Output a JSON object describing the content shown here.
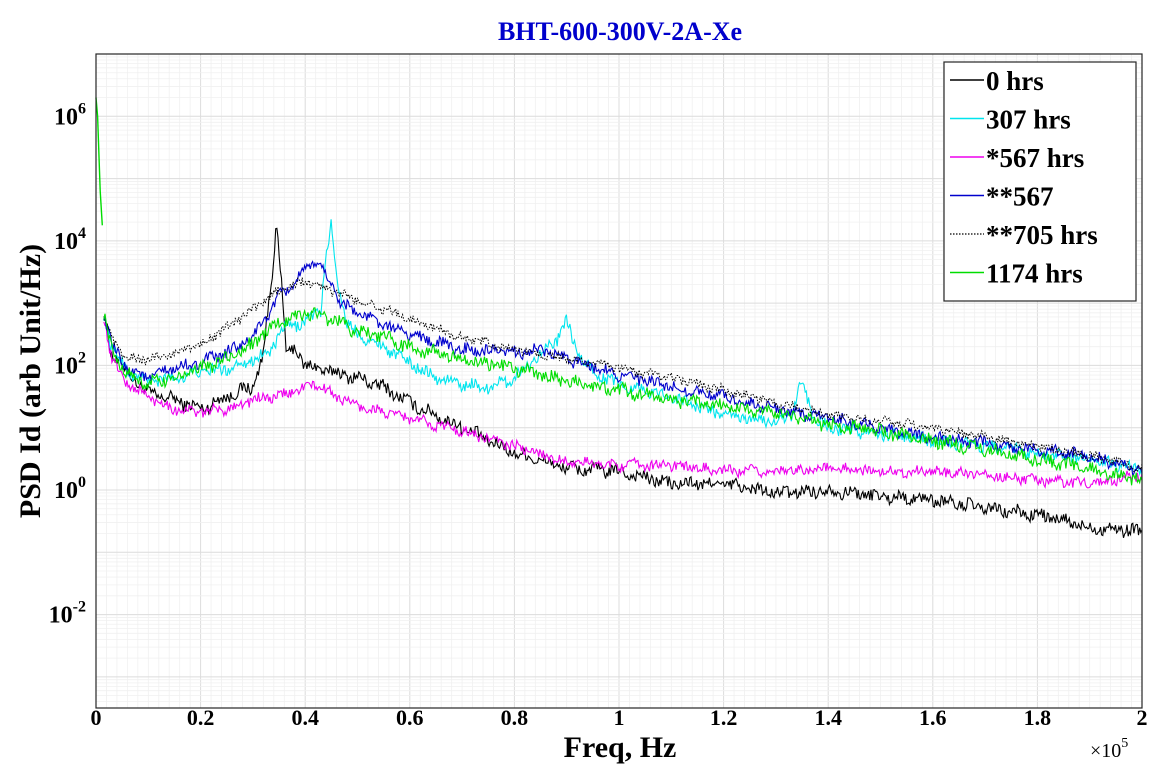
{
  "chart_data": {
    "type": "line",
    "title": "BHT-600-300V-2A-Xe",
    "xlabel": "Freq, Hz",
    "ylabel": "PSD Id (arb Unit/Hz)",
    "x_multiplier_label": "×10",
    "x_multiplier_exp": "5",
    "x_scale": 100000,
    "xlim": [
      0,
      2
    ],
    "ylim_log10": [
      -3.5,
      7
    ],
    "y_scale": "log",
    "grid": true,
    "legend_position": "top-right",
    "x_ticks": [
      "0",
      "0.2",
      "0.4",
      "0.6",
      "0.8",
      "1",
      "1.2",
      "1.4",
      "1.6",
      "1.8",
      "2"
    ],
    "y_ticks": [
      {
        "base": "10",
        "exp": "6",
        "log10": 6
      },
      {
        "base": "10",
        "exp": "4",
        "log10": 4
      },
      {
        "base": "10",
        "exp": "2",
        "log10": 2
      },
      {
        "base": "10",
        "exp": "0",
        "log10": 0
      },
      {
        "base": "10",
        "exp": "-2",
        "log10": -2
      }
    ],
    "series": [
      {
        "name": "0 hrs",
        "color": "#000000",
        "dash": false,
        "noise": 0.1,
        "points": [
          [
            0.015,
            2.85
          ],
          [
            0.03,
            2.2
          ],
          [
            0.06,
            1.9
          ],
          [
            0.1,
            1.55
          ],
          [
            0.15,
            1.45
          ],
          [
            0.2,
            1.3
          ],
          [
            0.25,
            1.5
          ],
          [
            0.28,
            1.6
          ],
          [
            0.3,
            1.65
          ],
          [
            0.32,
            2.2
          ],
          [
            0.335,
            3.3
          ],
          [
            0.345,
            4.3
          ],
          [
            0.355,
            3.3
          ],
          [
            0.365,
            2.1
          ],
          [
            0.38,
            2.3
          ],
          [
            0.4,
            2.0
          ],
          [
            0.45,
            1.9
          ],
          [
            0.5,
            1.8
          ],
          [
            0.55,
            1.65
          ],
          [
            0.6,
            1.4
          ],
          [
            0.7,
            1.0
          ],
          [
            0.8,
            0.6
          ],
          [
            0.9,
            0.35
          ],
          [
            1.0,
            0.3
          ],
          [
            1.1,
            0.1
          ],
          [
            1.2,
            0.1
          ],
          [
            1.3,
            -0.05
          ],
          [
            1.4,
            0
          ],
          [
            1.5,
            -0.1
          ],
          [
            1.6,
            -0.15
          ],
          [
            1.7,
            -0.3
          ],
          [
            1.8,
            -0.4
          ],
          [
            1.9,
            -0.6
          ],
          [
            2.0,
            -0.65
          ]
        ]
      },
      {
        "name": "307 hrs",
        "color": "#00e5ee",
        "dash": false,
        "noise": 0.09,
        "points": [
          [
            0.015,
            2.8
          ],
          [
            0.03,
            2.3
          ],
          [
            0.06,
            1.9
          ],
          [
            0.1,
            1.75
          ],
          [
            0.15,
            1.8
          ],
          [
            0.2,
            1.9
          ],
          [
            0.25,
            1.95
          ],
          [
            0.3,
            2.1
          ],
          [
            0.33,
            2.2
          ],
          [
            0.36,
            2.6
          ],
          [
            0.4,
            2.7
          ],
          [
            0.43,
            2.9
          ],
          [
            0.44,
            3.8
          ],
          [
            0.45,
            4.25
          ],
          [
            0.46,
            3.4
          ],
          [
            0.48,
            2.7
          ],
          [
            0.5,
            2.5
          ],
          [
            0.55,
            2.3
          ],
          [
            0.6,
            2.05
          ],
          [
            0.65,
            1.8
          ],
          [
            0.7,
            1.7
          ],
          [
            0.75,
            1.65
          ],
          [
            0.8,
            1.8
          ],
          [
            0.85,
            2.2
          ],
          [
            0.88,
            2.4
          ],
          [
            0.9,
            2.7
          ],
          [
            0.92,
            2.2
          ],
          [
            0.95,
            1.9
          ],
          [
            1.0,
            1.7
          ],
          [
            1.1,
            1.5
          ],
          [
            1.2,
            1.2
          ],
          [
            1.3,
            1.1
          ],
          [
            1.33,
            1.2
          ],
          [
            1.35,
            1.75
          ],
          [
            1.37,
            1.2
          ],
          [
            1.4,
            1.0
          ],
          [
            1.5,
            0.9
          ],
          [
            1.6,
            0.8
          ],
          [
            1.7,
            0.7
          ],
          [
            1.8,
            0.6
          ],
          [
            1.9,
            0.5
          ],
          [
            2.0,
            0.3
          ]
        ]
      },
      {
        "name": "*567 hrs",
        "color": "#ee00ee",
        "dash": false,
        "noise": 0.08,
        "points": [
          [
            0.015,
            2.8
          ],
          [
            0.03,
            2.1
          ],
          [
            0.06,
            1.7
          ],
          [
            0.1,
            1.5
          ],
          [
            0.15,
            1.3
          ],
          [
            0.2,
            1.25
          ],
          [
            0.25,
            1.3
          ],
          [
            0.3,
            1.45
          ],
          [
            0.35,
            1.5
          ],
          [
            0.4,
            1.65
          ],
          [
            0.42,
            1.7
          ],
          [
            0.45,
            1.55
          ],
          [
            0.5,
            1.35
          ],
          [
            0.55,
            1.25
          ],
          [
            0.6,
            1.15
          ],
          [
            0.7,
            0.95
          ],
          [
            0.8,
            0.7
          ],
          [
            0.9,
            0.45
          ],
          [
            1.0,
            0.4
          ],
          [
            1.1,
            0.4
          ],
          [
            1.2,
            0.3
          ],
          [
            1.3,
            0.3
          ],
          [
            1.4,
            0.35
          ],
          [
            1.5,
            0.3
          ],
          [
            1.6,
            0.3
          ],
          [
            1.7,
            0.25
          ],
          [
            1.8,
            0.15
          ],
          [
            1.9,
            0.1
          ],
          [
            2.0,
            0.25
          ]
        ]
      },
      {
        "name": "**567",
        "color": "#0000cd",
        "dash": false,
        "noise": 0.09,
        "points": [
          [
            0.015,
            2.85
          ],
          [
            0.03,
            2.3
          ],
          [
            0.06,
            1.95
          ],
          [
            0.1,
            1.8
          ],
          [
            0.15,
            1.95
          ],
          [
            0.2,
            2.05
          ],
          [
            0.25,
            2.2
          ],
          [
            0.3,
            2.45
          ],
          [
            0.35,
            3.1
          ],
          [
            0.4,
            3.5
          ],
          [
            0.42,
            3.7
          ],
          [
            0.44,
            3.45
          ],
          [
            0.47,
            3.0
          ],
          [
            0.5,
            2.85
          ],
          [
            0.55,
            2.65
          ],
          [
            0.6,
            2.5
          ],
          [
            0.7,
            2.25
          ],
          [
            0.8,
            2.2
          ],
          [
            0.85,
            2.25
          ],
          [
            0.9,
            2.1
          ],
          [
            0.95,
            2.0
          ],
          [
            1.0,
            1.85
          ],
          [
            1.1,
            1.65
          ],
          [
            1.2,
            1.5
          ],
          [
            1.3,
            1.3
          ],
          [
            1.4,
            1.15
          ],
          [
            1.5,
            1.0
          ],
          [
            1.6,
            0.85
          ],
          [
            1.7,
            0.75
          ],
          [
            1.8,
            0.65
          ],
          [
            1.9,
            0.55
          ],
          [
            2.0,
            0.3
          ]
        ]
      },
      {
        "name": "**705 hrs",
        "color": "#000000",
        "dash": true,
        "noise": 0.07,
        "points": [
          [
            0.015,
            2.8
          ],
          [
            0.03,
            2.4
          ],
          [
            0.06,
            2.1
          ],
          [
            0.1,
            2.1
          ],
          [
            0.15,
            2.2
          ],
          [
            0.2,
            2.35
          ],
          [
            0.25,
            2.6
          ],
          [
            0.3,
            2.9
          ],
          [
            0.35,
            3.2
          ],
          [
            0.4,
            3.35
          ],
          [
            0.45,
            3.2
          ],
          [
            0.5,
            3.05
          ],
          [
            0.55,
            2.9
          ],
          [
            0.6,
            2.75
          ],
          [
            0.7,
            2.45
          ],
          [
            0.8,
            2.25
          ],
          [
            0.9,
            2.1
          ],
          [
            1.0,
            1.95
          ],
          [
            1.1,
            1.8
          ],
          [
            1.2,
            1.6
          ],
          [
            1.3,
            1.4
          ],
          [
            1.4,
            1.2
          ],
          [
            1.5,
            1.1
          ],
          [
            1.6,
            1.0
          ],
          [
            1.7,
            0.85
          ],
          [
            1.8,
            0.7
          ],
          [
            1.9,
            0.55
          ],
          [
            2.0,
            0.35
          ]
        ]
      },
      {
        "name": "1174 hrs",
        "color": "#00dd00",
        "dash": false,
        "noise": 0.1,
        "points": [
          [
            0.015,
            2.8
          ],
          [
            0.03,
            2.25
          ],
          [
            0.06,
            1.85
          ],
          [
            0.1,
            1.7
          ],
          [
            0.15,
            1.8
          ],
          [
            0.2,
            1.95
          ],
          [
            0.25,
            2.1
          ],
          [
            0.3,
            2.35
          ],
          [
            0.35,
            2.7
          ],
          [
            0.4,
            2.85
          ],
          [
            0.45,
            2.75
          ],
          [
            0.5,
            2.55
          ],
          [
            0.55,
            2.45
          ],
          [
            0.6,
            2.3
          ],
          [
            0.7,
            2.1
          ],
          [
            0.8,
            1.95
          ],
          [
            0.9,
            1.75
          ],
          [
            1.0,
            1.6
          ],
          [
            1.1,
            1.45
          ],
          [
            1.2,
            1.35
          ],
          [
            1.3,
            1.25
          ],
          [
            1.4,
            1.05
          ],
          [
            1.5,
            0.95
          ],
          [
            1.6,
            0.8
          ],
          [
            1.7,
            0.65
          ],
          [
            1.8,
            0.5
          ],
          [
            1.9,
            0.35
          ],
          [
            2.0,
            0.15
          ]
        ]
      }
    ],
    "spike_note_series": "1174 hrs",
    "spike_points": [
      [
        0,
        6.3
      ],
      [
        0.003,
        6.0
      ],
      [
        0.008,
        4.8
      ],
      [
        0.012,
        4.25
      ]
    ]
  }
}
